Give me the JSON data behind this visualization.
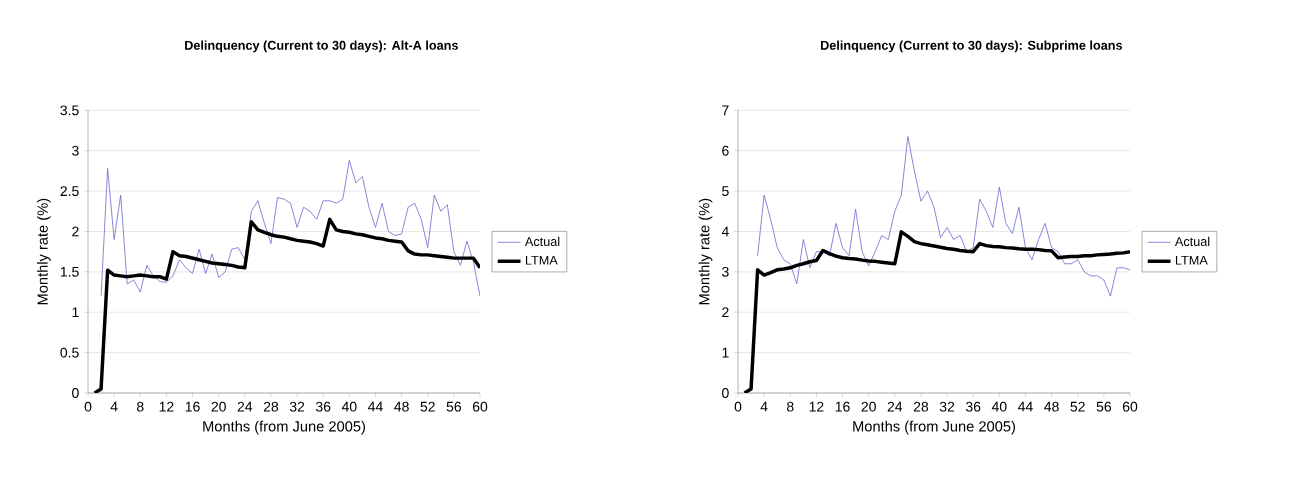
{
  "chart_data": [
    {
      "type": "line",
      "title": "Delinquency (Current to 30 days): Alt-A loans",
      "xlabel": "Months (from June 2005)",
      "ylabel": "Monthly rate (%)",
      "x": [
        1,
        2,
        3,
        4,
        5,
        6,
        7,
        8,
        9,
        10,
        11,
        12,
        13,
        14,
        15,
        16,
        17,
        18,
        19,
        20,
        21,
        22,
        23,
        24,
        25,
        26,
        27,
        28,
        29,
        30,
        31,
        32,
        33,
        34,
        35,
        36,
        37,
        38,
        39,
        40,
        41,
        42,
        43,
        44,
        45,
        46,
        47,
        48,
        49,
        50,
        51,
        52,
        53,
        54,
        55,
        56,
        57,
        58,
        59,
        60
      ],
      "series": [
        {
          "name": "Actual",
          "color": "#6a6ad2",
          "values": [
            null,
            1.2,
            2.78,
            1.9,
            2.45,
            1.35,
            1.4,
            1.25,
            1.58,
            1.45,
            1.38,
            1.37,
            1.45,
            1.65,
            1.55,
            1.48,
            1.78,
            1.48,
            1.72,
            1.43,
            1.5,
            1.78,
            1.8,
            1.65,
            2.25,
            2.38,
            2.1,
            1.85,
            2.42,
            2.4,
            2.35,
            2.05,
            2.3,
            2.25,
            2.15,
            2.38,
            2.38,
            2.35,
            2.4,
            2.88,
            2.6,
            2.68,
            2.3,
            2.05,
            2.35,
            2.0,
            1.95,
            1.97,
            2.3,
            2.35,
            2.15,
            1.8,
            2.45,
            2.25,
            2.33,
            1.75,
            1.58,
            1.88,
            1.62,
            1.2
          ]
        },
        {
          "name": "LTMA",
          "color": "#000000",
          "values": [
            0,
            0.05,
            1.52,
            1.46,
            1.45,
            1.44,
            1.45,
            1.46,
            1.45,
            1.44,
            1.44,
            1.41,
            1.75,
            1.7,
            1.69,
            1.67,
            1.65,
            1.63,
            1.61,
            1.6,
            1.59,
            1.58,
            1.56,
            1.55,
            2.12,
            2.02,
            1.99,
            1.96,
            1.94,
            1.93,
            1.91,
            1.89,
            1.88,
            1.87,
            1.85,
            1.82,
            2.15,
            2.02,
            2.0,
            1.99,
            1.97,
            1.96,
            1.94,
            1.92,
            1.91,
            1.89,
            1.88,
            1.87,
            1.76,
            1.72,
            1.71,
            1.71,
            1.7,
            1.69,
            1.68,
            1.67,
            1.67,
            1.67,
            1.67,
            1.55
          ]
        }
      ],
      "xlim": [
        0,
        60
      ],
      "ylim": [
        0,
        3.5
      ],
      "xticks": [
        0,
        4,
        8,
        12,
        16,
        20,
        24,
        28,
        32,
        36,
        40,
        44,
        48,
        52,
        56,
        60
      ],
      "yticks": [
        0,
        0.5,
        1,
        1.5,
        2,
        2.5,
        3,
        3.5
      ],
      "grid": "y",
      "legend": "right",
      "marker": "none"
    },
    {
      "type": "line",
      "title": "Delinquency (Current to 30 days): Subprime loans",
      "xlabel": "Months (from June 2005)",
      "ylabel": "Monthly rate (%)",
      "x": [
        1,
        2,
        3,
        4,
        5,
        6,
        7,
        8,
        9,
        10,
        11,
        12,
        13,
        14,
        15,
        16,
        17,
        18,
        19,
        20,
        21,
        22,
        23,
        24,
        25,
        26,
        27,
        28,
        29,
        30,
        31,
        32,
        33,
        34,
        35,
        36,
        37,
        38,
        39,
        40,
        41,
        42,
        43,
        44,
        45,
        46,
        47,
        48,
        49,
        50,
        51,
        52,
        53,
        54,
        55,
        56,
        57,
        58,
        59,
        60
      ],
      "series": [
        {
          "name": "Actual",
          "color": "#6a6ad2",
          "values": [
            null,
            null,
            3.4,
            4.9,
            4.3,
            3.6,
            3.3,
            3.2,
            2.7,
            3.8,
            3.1,
            3.5,
            3.5,
            3.4,
            4.2,
            3.6,
            3.4,
            4.55,
            3.5,
            3.15,
            3.5,
            3.9,
            3.8,
            4.5,
            4.9,
            6.35,
            5.5,
            4.75,
            5.0,
            4.6,
            3.85,
            4.1,
            3.8,
            3.9,
            3.5,
            3.6,
            4.8,
            4.5,
            4.1,
            5.1,
            4.2,
            3.95,
            4.6,
            3.6,
            3.3,
            3.8,
            4.2,
            3.6,
            3.5,
            3.2,
            3.2,
            3.3,
            3.0,
            2.9,
            2.9,
            2.8,
            2.4,
            3.1,
            3.1,
            3.05
          ]
        },
        {
          "name": "LTMA",
          "color": "#000000",
          "values": [
            0,
            0.1,
            3.05,
            2.92,
            2.98,
            3.05,
            3.07,
            3.1,
            3.16,
            3.2,
            3.25,
            3.28,
            3.53,
            3.45,
            3.39,
            3.35,
            3.33,
            3.32,
            3.29,
            3.27,
            3.26,
            3.24,
            3.22,
            3.2,
            3.99,
            3.88,
            3.75,
            3.7,
            3.67,
            3.64,
            3.61,
            3.58,
            3.56,
            3.53,
            3.51,
            3.5,
            3.7,
            3.65,
            3.63,
            3.62,
            3.6,
            3.59,
            3.57,
            3.56,
            3.56,
            3.55,
            3.53,
            3.52,
            3.35,
            3.37,
            3.38,
            3.38,
            3.4,
            3.4,
            3.42,
            3.43,
            3.44,
            3.46,
            3.47,
            3.5
          ]
        }
      ],
      "xlim": [
        0,
        60
      ],
      "ylim": [
        0,
        7
      ],
      "xticks": [
        0,
        4,
        8,
        12,
        16,
        20,
        24,
        28,
        32,
        36,
        40,
        44,
        48,
        52,
        56,
        60
      ],
      "yticks": [
        0,
        1,
        2,
        3,
        4,
        5,
        6,
        7
      ],
      "grid": "y",
      "legend": "right",
      "marker": "none"
    }
  ]
}
